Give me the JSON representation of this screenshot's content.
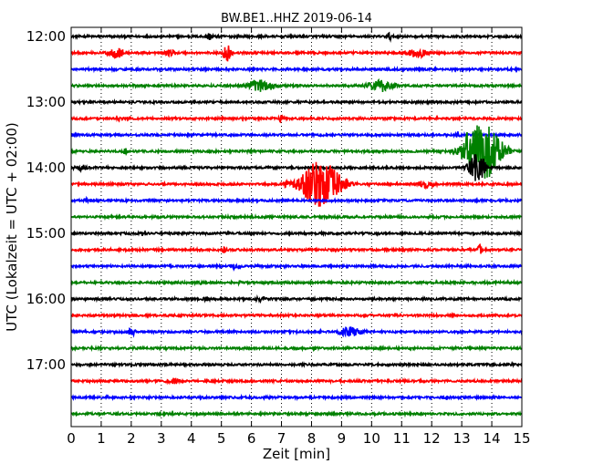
{
  "chart_data": {
    "type": "line",
    "title": "BW.BE1..HHZ 2019-06-14",
    "xlabel": "Zeit  [min]",
    "ylabel": "UTC (Lokalzeit = UTC + 02:00)",
    "xlim": [
      0,
      15
    ],
    "x_ticks": [
      0,
      1,
      2,
      3,
      4,
      5,
      6,
      7,
      8,
      9,
      10,
      11,
      12,
      13,
      14,
      15
    ],
    "y_tick_labels": [
      "12:00",
      "13:00",
      "14:00",
      "15:00",
      "16:00",
      "17:00"
    ],
    "trace_start_times": [
      "12:00",
      "12:15",
      "12:30",
      "12:45",
      "13:00",
      "13:15",
      "13:30",
      "13:45",
      "14:00",
      "14:15",
      "14:30",
      "14:45",
      "15:00",
      "15:15",
      "15:30",
      "15:45",
      "16:00",
      "16:15",
      "16:30",
      "16:45",
      "17:00",
      "17:15",
      "17:30",
      "17:45"
    ],
    "trace_colors": [
      "#000000",
      "#ff0000",
      "#0000ff",
      "#008000"
    ],
    "grid_x": true,
    "events": [
      {
        "trace": 0,
        "minute": 4.6,
        "amplitude": 0.35,
        "duration": 0.4
      },
      {
        "trace": 0,
        "minute": 10.6,
        "amplitude": 0.4,
        "duration": 0.2
      },
      {
        "trace": 1,
        "minute": 1.5,
        "amplitude": 0.45,
        "duration": 1.0
      },
      {
        "trace": 1,
        "minute": 3.3,
        "amplitude": 0.3,
        "duration": 0.6
      },
      {
        "trace": 1,
        "minute": 5.2,
        "amplitude": 0.9,
        "duration": 0.4
      },
      {
        "trace": 1,
        "minute": 11.5,
        "amplitude": 0.45,
        "duration": 1.0
      },
      {
        "trace": 2,
        "minute": 7.1,
        "amplitude": 0.15,
        "duration": 0.4
      },
      {
        "trace": 3,
        "minute": 6.3,
        "amplitude": 0.55,
        "duration": 1.5
      },
      {
        "trace": 3,
        "minute": 10.3,
        "amplitude": 0.55,
        "duration": 1.4
      },
      {
        "trace": 4,
        "minute": 4.1,
        "amplitude": 0.2,
        "duration": 0.3
      },
      {
        "trace": 5,
        "minute": 7.0,
        "amplitude": 0.35,
        "duration": 0.3
      },
      {
        "trace": 5,
        "minute": 1.6,
        "amplitude": 0.25,
        "duration": 0.2
      },
      {
        "trace": 6,
        "minute": 12.9,
        "amplitude": 0.3,
        "duration": 0.4
      },
      {
        "trace": 7,
        "minute": 13.7,
        "amplitude": 2.5,
        "duration": 1.8
      },
      {
        "trace": 7,
        "minute": 13.2,
        "amplitude": 1.7,
        "duration": 0.5
      },
      {
        "trace": 7,
        "minute": 1.8,
        "amplitude": 0.4,
        "duration": 0.15
      },
      {
        "trace": 8,
        "minute": 13.5,
        "amplitude": 1.5,
        "duration": 0.8
      },
      {
        "trace": 8,
        "minute": 0.3,
        "amplitude": 0.3,
        "duration": 0.7
      },
      {
        "trace": 9,
        "minute": 8.3,
        "amplitude": 2.0,
        "duration": 2.0
      },
      {
        "trace": 9,
        "minute": 11.8,
        "amplitude": 0.35,
        "duration": 1.0
      },
      {
        "trace": 9,
        "minute": 7.3,
        "amplitude": 0.4,
        "duration": 0.8
      },
      {
        "trace": 10,
        "minute": 0.5,
        "amplitude": 0.3,
        "duration": 0.2
      },
      {
        "trace": 12,
        "minute": 2.35,
        "amplitude": 0.35,
        "duration": 0.1
      },
      {
        "trace": 13,
        "minute": 5.1,
        "amplitude": 0.3,
        "duration": 0.3
      },
      {
        "trace": 13,
        "minute": 13.6,
        "amplitude": 0.5,
        "duration": 0.2
      },
      {
        "trace": 14,
        "minute": 5.5,
        "amplitude": 0.35,
        "duration": 0.4
      },
      {
        "trace": 15,
        "minute": 4.3,
        "amplitude": 0.2,
        "duration": 0.2
      },
      {
        "trace": 15,
        "minute": 5.6,
        "amplitude": 0.2,
        "duration": 0.2
      },
      {
        "trace": 16,
        "minute": 6.3,
        "amplitude": 0.25,
        "duration": 0.6
      },
      {
        "trace": 16,
        "minute": 4.5,
        "amplitude": 0.2,
        "duration": 0.5
      },
      {
        "trace": 17,
        "minute": 2.8,
        "amplitude": 0.15,
        "duration": 0.3
      },
      {
        "trace": 18,
        "minute": 2.0,
        "amplitude": 0.4,
        "duration": 0.4
      },
      {
        "trace": 18,
        "minute": 9.3,
        "amplitude": 0.45,
        "duration": 1.2
      },
      {
        "trace": 18,
        "minute": 8.3,
        "amplitude": 0.25,
        "duration": 0.2
      },
      {
        "trace": 19,
        "minute": 8.1,
        "amplitude": 0.2,
        "duration": 0.2
      },
      {
        "trace": 21,
        "minute": 3.4,
        "amplitude": 0.3,
        "duration": 0.7
      },
      {
        "trace": 22,
        "minute": 1.2,
        "amplitude": 0.25,
        "duration": 0.1
      },
      {
        "trace": 22,
        "minute": 12.5,
        "amplitude": 0.25,
        "duration": 0.1
      }
    ]
  }
}
